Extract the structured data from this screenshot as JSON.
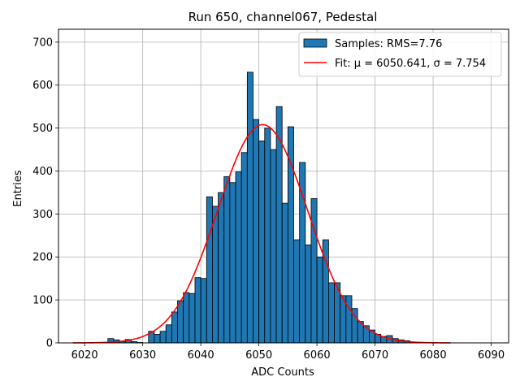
{
  "chart_data": {
    "type": "bar",
    "title": "Run 650, channel067, Pedestal",
    "xlabel": "ADC Counts",
    "ylabel": "Entries",
    "xlim": [
      6015.5,
      6093
    ],
    "ylim": [
      0,
      730
    ],
    "xticks": [
      6020,
      6030,
      6040,
      6050,
      6060,
      6070,
      6080,
      6090
    ],
    "yticks": [
      0,
      100,
      200,
      300,
      400,
      500,
      600,
      700
    ],
    "grid": true,
    "legend_position": "top-right",
    "bin_width": 1,
    "bins": [
      6024,
      6025,
      6026,
      6027,
      6028,
      6029,
      6030,
      6031,
      6032,
      6033,
      6034,
      6035,
      6036,
      6037,
      6038,
      6039,
      6040,
      6041,
      6042,
      6043,
      6044,
      6045,
      6046,
      6047,
      6048,
      6049,
      6050,
      6051,
      6052,
      6053,
      6054,
      6055,
      6056,
      6057,
      6058,
      6059,
      6060,
      6061,
      6062,
      6063,
      6064,
      6065,
      6066,
      6067,
      6068,
      6069,
      6070,
      6071,
      6072,
      6073,
      6074,
      6075,
      6076
    ],
    "counts": [
      10,
      7,
      3,
      8,
      3,
      1,
      0,
      27,
      20,
      27,
      42,
      72,
      98,
      117,
      115,
      152,
      150,
      340,
      318,
      350,
      387,
      373,
      398,
      443,
      630,
      520,
      470,
      500,
      450,
      550,
      325,
      503,
      240,
      420,
      228,
      336,
      200,
      240,
      140,
      140,
      110,
      110,
      80,
      50,
      40,
      30,
      20,
      15,
      17,
      10,
      7,
      5,
      2
    ],
    "series": [
      {
        "name": "Samples: RMS=7.76",
        "kind": "histogram",
        "color": "#1f77b4"
      },
      {
        "name": "Fit: μ = 6050.641, σ = 7.754",
        "kind": "gaussian-fit",
        "color": "#ff0000",
        "mu": 6050.641,
        "sigma": 7.754,
        "amplitude": 508,
        "x_range": [
          6018,
          6083
        ]
      }
    ]
  }
}
